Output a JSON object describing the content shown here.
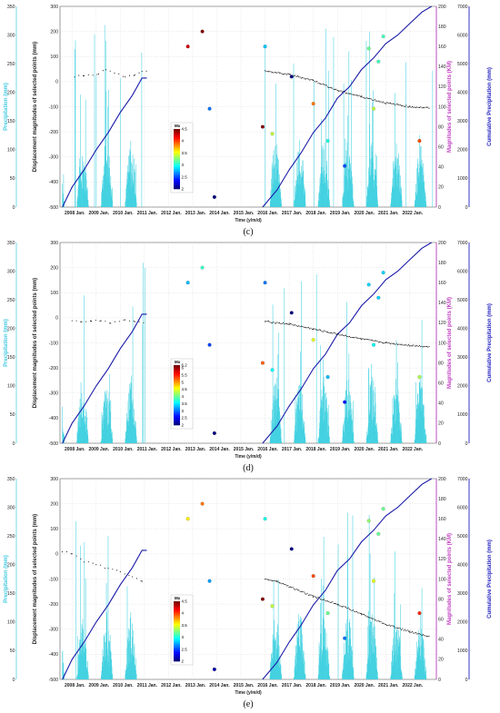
{
  "figure": {
    "axis_labels": {
      "precipitation": "Precipitation (mm)",
      "displacement": "Displacement magnitudes of selected points (mm)",
      "magnitude_pts": "Magnitudes of selected points (KM)",
      "cumulative": "Cumulative Precipitation (mm)",
      "time": "Time (y/m/d)",
      "colorbar": "Mx"
    },
    "colors": {
      "precip": "#3fd0e0",
      "cumulative": "#1a1aa8",
      "displacement": "#000000",
      "pink_axis": "#c040c0",
      "blue_axis": "#2020c0",
      "cyan_axis": "#40c8e0"
    }
  },
  "chart_data": [
    {
      "type": "line",
      "caption": "(c)",
      "x_ticks": [
        "2008 Jan.",
        "2009 Jan.",
        "2010 Jan.",
        "2011 Jan.",
        "2012 Jan.",
        "2013 Jan.",
        "2014 Jan.",
        "2015 Jan.",
        "2016 Jan.",
        "2017 Jan.",
        "2018 Jan.",
        "2019 Jan.",
        "2020 Jan.",
        "2021 Jan.",
        "2022 Jan."
      ],
      "xlim": [
        2007.5,
        2023.1
      ],
      "disp_ylim": [
        -500,
        300
      ],
      "disp_ticks": [
        -500,
        -400,
        -300,
        -200,
        -100,
        0,
        100,
        200,
        300
      ],
      "mag_ylim": [
        0,
        200
      ],
      "mag_ticks": [
        0,
        20,
        40,
        60,
        80,
        100,
        120,
        140,
        160,
        180,
        200
      ],
      "cum_ylim": [
        0,
        7000
      ],
      "cum_ticks": [
        0,
        1000,
        2000,
        3000,
        4000,
        5000,
        6000,
        7000
      ],
      "precip_ylim": [
        0,
        350
      ],
      "precip_ticks": [
        0,
        50,
        100,
        150,
        200,
        250,
        300,
        350
      ],
      "displacement_early": [
        [
          2008.1,
          20
        ],
        [
          2008.5,
          25
        ],
        [
          2009.1,
          30
        ],
        [
          2009.4,
          50
        ],
        [
          2010.2,
          20
        ],
        [
          2010.6,
          25
        ],
        [
          2010.9,
          40
        ],
        [
          2011.1,
          45
        ]
      ],
      "displacement_late": [
        [
          2016.0,
          42
        ],
        [
          2017.0,
          28
        ],
        [
          2018.0,
          5
        ],
        [
          2019.0,
          -35
        ],
        [
          2020.0,
          -60
        ],
        [
          2021.0,
          -85
        ],
        [
          2022.0,
          -100
        ],
        [
          2022.8,
          -105
        ]
      ],
      "cumulative_early": [
        [
          2007.6,
          0
        ],
        [
          2008.0,
          700
        ],
        [
          2008.5,
          1300
        ],
        [
          2009.0,
          2000
        ],
        [
          2009.5,
          2600
        ],
        [
          2010.0,
          3300
        ],
        [
          2010.5,
          3900
        ],
        [
          2010.9,
          4500
        ],
        [
          2011.1,
          4500
        ]
      ],
      "cumulative_late": [
        [
          2015.9,
          0
        ],
        [
          2016.5,
          600
        ],
        [
          2017.0,
          1300
        ],
        [
          2017.5,
          1900
        ],
        [
          2018.0,
          2600
        ],
        [
          2018.5,
          3100
        ],
        [
          2019.0,
          3800
        ],
        [
          2019.5,
          4200
        ],
        [
          2020.0,
          4800
        ],
        [
          2020.5,
          5200
        ],
        [
          2021.0,
          5700
        ],
        [
          2021.5,
          6000
        ],
        [
          2022.0,
          6400
        ],
        [
          2022.5,
          6800
        ],
        [
          2022.9,
          7000
        ]
      ],
      "quakes": [
        [
          2012.8,
          160,
          4.3
        ],
        [
          2013.4,
          175,
          4.8
        ],
        [
          2013.7,
          98,
          2.6
        ],
        [
          2013.9,
          10,
          2.0
        ],
        [
          2016.0,
          160,
          2.8
        ],
        [
          2015.9,
          80,
          5.0
        ],
        [
          2016.3,
          73,
          3.4
        ],
        [
          2017.1,
          130,
          1.8
        ],
        [
          2018.0,
          103,
          3.9
        ],
        [
          2018.6,
          66,
          3.0
        ],
        [
          2019.3,
          41,
          2.5
        ],
        [
          2020.3,
          158,
          3.2
        ],
        [
          2020.9,
          170,
          3.1
        ],
        [
          2020.7,
          145,
          3.1
        ],
        [
          2020.5,
          98,
          3.4
        ],
        [
          2022.4,
          66,
          4.0
        ]
      ],
      "cbar": {
        "min": 2,
        "max": 4.5,
        "ticks": [
          2,
          2.5,
          3,
          3.5,
          4,
          4.5
        ]
      }
    },
    {
      "type": "line",
      "caption": "(d)",
      "x_ticks": [
        "2008 Jan.",
        "2009 Jan.",
        "2010 Jan.",
        "2011 Jan.",
        "2012 Jan.",
        "2013 Jan.",
        "2014 Jan.",
        "2015 Jan.",
        "2016 Jan.",
        "2017 Jan.",
        "2018 Jan.",
        "2019 Jan.",
        "2020 Jan.",
        "2021 Jan.",
        "2022 Jan."
      ],
      "xlim": [
        2007.5,
        2023.1
      ],
      "disp_ylim": [
        -500,
        300
      ],
      "disp_ticks": [
        -500,
        -400,
        -300,
        -200,
        -100,
        0,
        100,
        200,
        300
      ],
      "mag_ylim": [
        0,
        200
      ],
      "mag_ticks": [
        0,
        20,
        40,
        60,
        80,
        100,
        120,
        140,
        160,
        180,
        200
      ],
      "cum_ylim": [
        0,
        7000
      ],
      "cum_ticks": [
        0,
        1000,
        2000,
        3000,
        4000,
        5000,
        6000,
        7000
      ],
      "precip_ylim": [
        0,
        350
      ],
      "precip_ticks": [
        0,
        50,
        100,
        150,
        200,
        250,
        300,
        350
      ],
      "displacement_early": [
        [
          2008.0,
          -10
        ],
        [
          2008.4,
          -15
        ],
        [
          2008.8,
          -15
        ],
        [
          2009.2,
          -10
        ],
        [
          2009.6,
          -20
        ],
        [
          2010.2,
          -10
        ],
        [
          2010.6,
          -15
        ],
        [
          2011.0,
          -20
        ]
      ],
      "displacement_late": [
        [
          2016.0,
          -15
        ],
        [
          2017.0,
          -25
        ],
        [
          2018.0,
          -45
        ],
        [
          2019.0,
          -65
        ],
        [
          2020.0,
          -85
        ],
        [
          2021.0,
          -100
        ],
        [
          2022.0,
          -110
        ],
        [
          2022.8,
          -115
        ]
      ],
      "cumulative_early": [
        [
          2007.6,
          0
        ],
        [
          2008.0,
          700
        ],
        [
          2008.5,
          1300
        ],
        [
          2009.0,
          2000
        ],
        [
          2009.5,
          2600
        ],
        [
          2010.0,
          3300
        ],
        [
          2010.5,
          3900
        ],
        [
          2010.9,
          4500
        ],
        [
          2011.1,
          4500
        ]
      ],
      "cumulative_late": [
        [
          2015.9,
          0
        ],
        [
          2016.5,
          600
        ],
        [
          2017.0,
          1300
        ],
        [
          2017.5,
          1900
        ],
        [
          2018.0,
          2600
        ],
        [
          2018.5,
          3100
        ],
        [
          2019.0,
          3800
        ],
        [
          2019.5,
          4200
        ],
        [
          2020.0,
          4800
        ],
        [
          2020.5,
          5200
        ],
        [
          2021.0,
          5700
        ],
        [
          2021.5,
          6000
        ],
        [
          2022.0,
          6400
        ],
        [
          2022.5,
          6800
        ],
        [
          2022.9,
          7000
        ]
      ],
      "quakes": [
        [
          2012.8,
          160,
          3.3
        ],
        [
          2013.4,
          175,
          3.8
        ],
        [
          2013.7,
          98,
          2.8
        ],
        [
          2013.9,
          10,
          2.0
        ],
        [
          2016.0,
          160,
          3.0
        ],
        [
          2015.9,
          80,
          5.3
        ],
        [
          2016.3,
          73,
          3.6
        ],
        [
          2017.1,
          130,
          2.0
        ],
        [
          2018.0,
          103,
          4.5
        ],
        [
          2018.6,
          66,
          3.3
        ],
        [
          2019.3,
          41,
          2.6
        ],
        [
          2020.3,
          158,
          3.4
        ],
        [
          2020.9,
          170,
          3.4
        ],
        [
          2020.7,
          145,
          3.4
        ],
        [
          2020.5,
          98,
          3.6
        ],
        [
          2022.4,
          66,
          4.3
        ]
      ],
      "cbar": {
        "min": 2,
        "max": 6.2,
        "ticks": [
          2,
          2.5,
          3,
          3.5,
          4,
          4.5,
          5,
          5.5,
          6,
          6.2
        ]
      }
    },
    {
      "type": "line",
      "caption": "(e)",
      "x_ticks": [
        "2008 Jan.",
        "2009 Jan.",
        "2010 Jan.",
        "2011 Jan.",
        "2012 Jan.",
        "2013 Jan.",
        "2014 Jan.",
        "2015 Jan.",
        "2016 Jan.",
        "2017 Jan.",
        "2018 Jan.",
        "2019 Jan.",
        "2020 Jan.",
        "2021 Jan.",
        "2022 Jan."
      ],
      "xlim": [
        2007.5,
        2023.1
      ],
      "disp_ylim": [
        -500,
        300
      ],
      "disp_ticks": [
        -500,
        -400,
        -300,
        -200,
        -100,
        0,
        100,
        200,
        300
      ],
      "mag_ylim": [
        0,
        200
      ],
      "mag_ticks": [
        0,
        20,
        40,
        60,
        80,
        100,
        120,
        140,
        160,
        180,
        200
      ],
      "cum_ylim": [
        0,
        7000
      ],
      "cum_ticks": [
        0,
        1000,
        2000,
        3000,
        4000,
        5000,
        6000,
        7000
      ],
      "precip_ylim": [
        0,
        350
      ],
      "precip_ticks": [
        0,
        50,
        100,
        150,
        200,
        250,
        300,
        350
      ],
      "displacement_early": [
        [
          2007.6,
          10
        ],
        [
          2008.0,
          0
        ],
        [
          2008.5,
          -30
        ],
        [
          2009.0,
          -40
        ],
        [
          2009.5,
          -60
        ],
        [
          2010.0,
          -70
        ],
        [
          2010.5,
          -90
        ],
        [
          2010.9,
          -110
        ],
        [
          2011.0,
          -125
        ]
      ],
      "displacement_late": [
        [
          2016.0,
          -100
        ],
        [
          2016.5,
          -110
        ],
        [
          2017.0,
          -130
        ],
        [
          2018.0,
          -170
        ],
        [
          2019.0,
          -200
        ],
        [
          2020.0,
          -240
        ],
        [
          2021.0,
          -280
        ],
        [
          2022.0,
          -310
        ],
        [
          2022.8,
          -330
        ]
      ],
      "cumulative_early": [
        [
          2007.6,
          0
        ],
        [
          2008.0,
          700
        ],
        [
          2008.5,
          1300
        ],
        [
          2009.0,
          2000
        ],
        [
          2009.5,
          2600
        ],
        [
          2010.0,
          3300
        ],
        [
          2010.5,
          3900
        ],
        [
          2010.9,
          4500
        ],
        [
          2011.1,
          4500
        ]
      ],
      "cumulative_late": [
        [
          2015.9,
          0
        ],
        [
          2016.5,
          600
        ],
        [
          2017.0,
          1300
        ],
        [
          2017.5,
          1900
        ],
        [
          2018.0,
          2600
        ],
        [
          2018.5,
          3100
        ],
        [
          2019.0,
          3800
        ],
        [
          2019.5,
          4200
        ],
        [
          2020.0,
          4800
        ],
        [
          2020.5,
          5200
        ],
        [
          2021.0,
          5700
        ],
        [
          2021.5,
          6000
        ],
        [
          2022.0,
          6400
        ],
        [
          2022.5,
          6800
        ],
        [
          2022.9,
          7000
        ]
      ],
      "quakes": [
        [
          2012.8,
          160,
          3.6
        ],
        [
          2013.4,
          175,
          3.9
        ],
        [
          2013.7,
          98,
          2.7
        ],
        [
          2013.9,
          10,
          2.1
        ],
        [
          2016.0,
          160,
          3.0
        ],
        [
          2015.9,
          80,
          4.7
        ],
        [
          2016.3,
          73,
          3.4
        ],
        [
          2017.1,
          130,
          2.0
        ],
        [
          2018.0,
          103,
          4.0
        ],
        [
          2018.6,
          66,
          3.2
        ],
        [
          2019.3,
          41,
          2.6
        ],
        [
          2020.3,
          158,
          3.3
        ],
        [
          2020.9,
          170,
          3.2
        ],
        [
          2020.7,
          145,
          3.2
        ],
        [
          2020.5,
          98,
          3.5
        ],
        [
          2022.4,
          66,
          4.1
        ]
      ],
      "cbar": {
        "min": 2,
        "max": 4.5,
        "ticks": [
          2,
          2.5,
          3,
          3.5,
          4,
          4.5
        ]
      }
    }
  ]
}
